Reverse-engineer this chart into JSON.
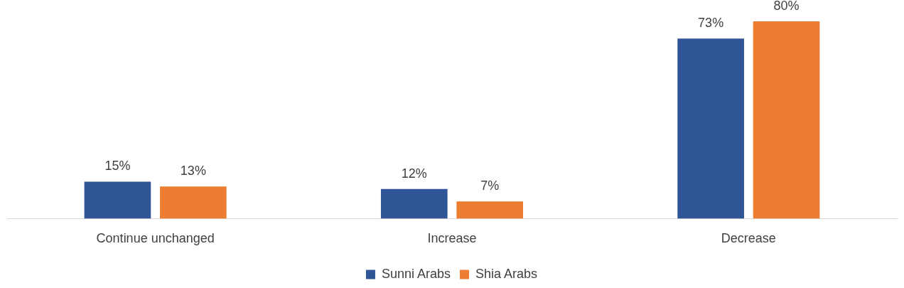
{
  "chart_data": {
    "type": "bar",
    "categories": [
      "Continue unchanged",
      "Increase",
      "Decrease"
    ],
    "series": [
      {
        "name": "Sunni Arabs",
        "color": "#2f5597",
        "values": [
          15,
          12,
          73
        ],
        "value_labels": [
          "15%",
          "12%",
          "73%"
        ]
      },
      {
        "name": "Shia Arabs",
        "color": "#ed7d31",
        "values": [
          13,
          7,
          80
        ],
        "value_labels": [
          "13%",
          "7%",
          "80%"
        ]
      }
    ],
    "legend": "bottom",
    "grid": false,
    "tick_labels": "x"
  }
}
